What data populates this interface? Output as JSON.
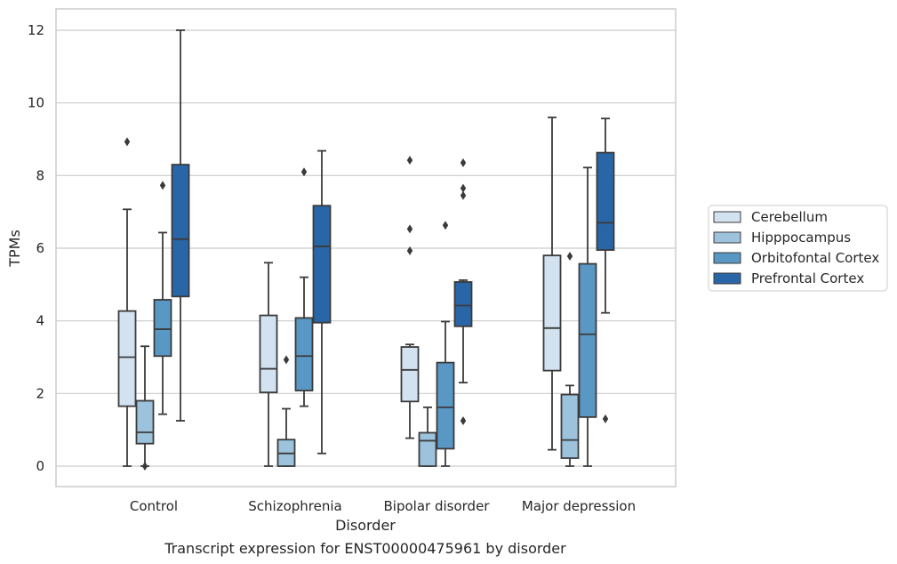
{
  "chart_data": {
    "type": "box",
    "title": "",
    "caption": "Transcript expression for ENST00000475961 by disorder",
    "xlabel": "Disorder",
    "ylabel": "TPMs",
    "ylim": [
      -0.6,
      12.6
    ],
    "yticks": [
      0,
      2,
      4,
      6,
      8,
      10,
      12
    ],
    "grid": "horizontal",
    "legend_position": "right",
    "categories": [
      "Control",
      "Schizophrenia",
      "Bipolar disorder",
      "Major depression"
    ],
    "series": [
      {
        "name": "Cerebellum",
        "color": "#d3e2f1",
        "boxes": [
          {
            "whislo": 0.0,
            "q1": 1.65,
            "med": 3.0,
            "q3": 4.27,
            "whishi": 7.07,
            "fliers": [
              8.93
            ]
          },
          {
            "whislo": 0.0,
            "q1": 2.03,
            "med": 2.68,
            "q3": 4.15,
            "whishi": 5.6,
            "fliers": []
          },
          {
            "whislo": 0.77,
            "q1": 1.78,
            "med": 2.65,
            "q3": 3.28,
            "whishi": 3.35,
            "fliers": [
              5.93,
              6.53,
              8.42
            ]
          },
          {
            "whislo": 0.45,
            "q1": 2.63,
            "med": 3.8,
            "q3": 5.8,
            "whishi": 9.6,
            "fliers": []
          }
        ]
      },
      {
        "name": "Hipppocampus",
        "color": "#9cc2dc",
        "boxes": [
          {
            "whislo": 0.0,
            "q1": 0.62,
            "med": 0.93,
            "q3": 1.8,
            "whishi": 3.3,
            "fliers": [
              0.0
            ]
          },
          {
            "whislo": 0.0,
            "q1": 0.0,
            "med": 0.35,
            "q3": 0.73,
            "whishi": 1.58,
            "fliers": [
              2.93
            ]
          },
          {
            "whislo": 0.0,
            "q1": 0.0,
            "med": 0.7,
            "q3": 0.92,
            "whishi": 1.62,
            "fliers": []
          },
          {
            "whislo": 0.0,
            "q1": 0.22,
            "med": 0.72,
            "q3": 1.97,
            "whishi": 2.22,
            "fliers": [
              5.78
            ]
          }
        ]
      },
      {
        "name": "Orbitofontal Cortex",
        "color": "#5997c5",
        "boxes": [
          {
            "whislo": 1.43,
            "q1": 3.03,
            "med": 3.77,
            "q3": 4.58,
            "whishi": 6.43,
            "fliers": [
              7.73
            ]
          },
          {
            "whislo": 1.65,
            "q1": 2.08,
            "med": 3.03,
            "q3": 4.08,
            "whishi": 5.2,
            "fliers": [
              8.1
            ]
          },
          {
            "whislo": 0.0,
            "q1": 0.48,
            "med": 1.62,
            "q3": 2.85,
            "whishi": 3.98,
            "fliers": [
              6.63
            ]
          },
          {
            "whislo": 0.0,
            "q1": 1.35,
            "med": 3.63,
            "q3": 5.57,
            "whishi": 8.22,
            "fliers": []
          }
        ]
      },
      {
        "name": "Prefrontal Cortex",
        "color": "#2866a8",
        "boxes": [
          {
            "whislo": 1.25,
            "q1": 4.67,
            "med": 6.25,
            "q3": 8.3,
            "whishi": 12.0,
            "fliers": []
          },
          {
            "whislo": 0.35,
            "q1": 3.95,
            "med": 6.05,
            "q3": 7.17,
            "whishi": 8.68,
            "fliers": []
          },
          {
            "whislo": 2.3,
            "q1": 3.85,
            "med": 4.42,
            "q3": 5.07,
            "whishi": 5.12,
            "fliers": [
              1.25,
              7.45,
              7.65,
              8.35
            ]
          },
          {
            "whislo": 4.22,
            "q1": 5.95,
            "med": 6.7,
            "q3": 8.63,
            "whishi": 9.57,
            "fliers": [
              1.3
            ]
          }
        ]
      }
    ]
  }
}
